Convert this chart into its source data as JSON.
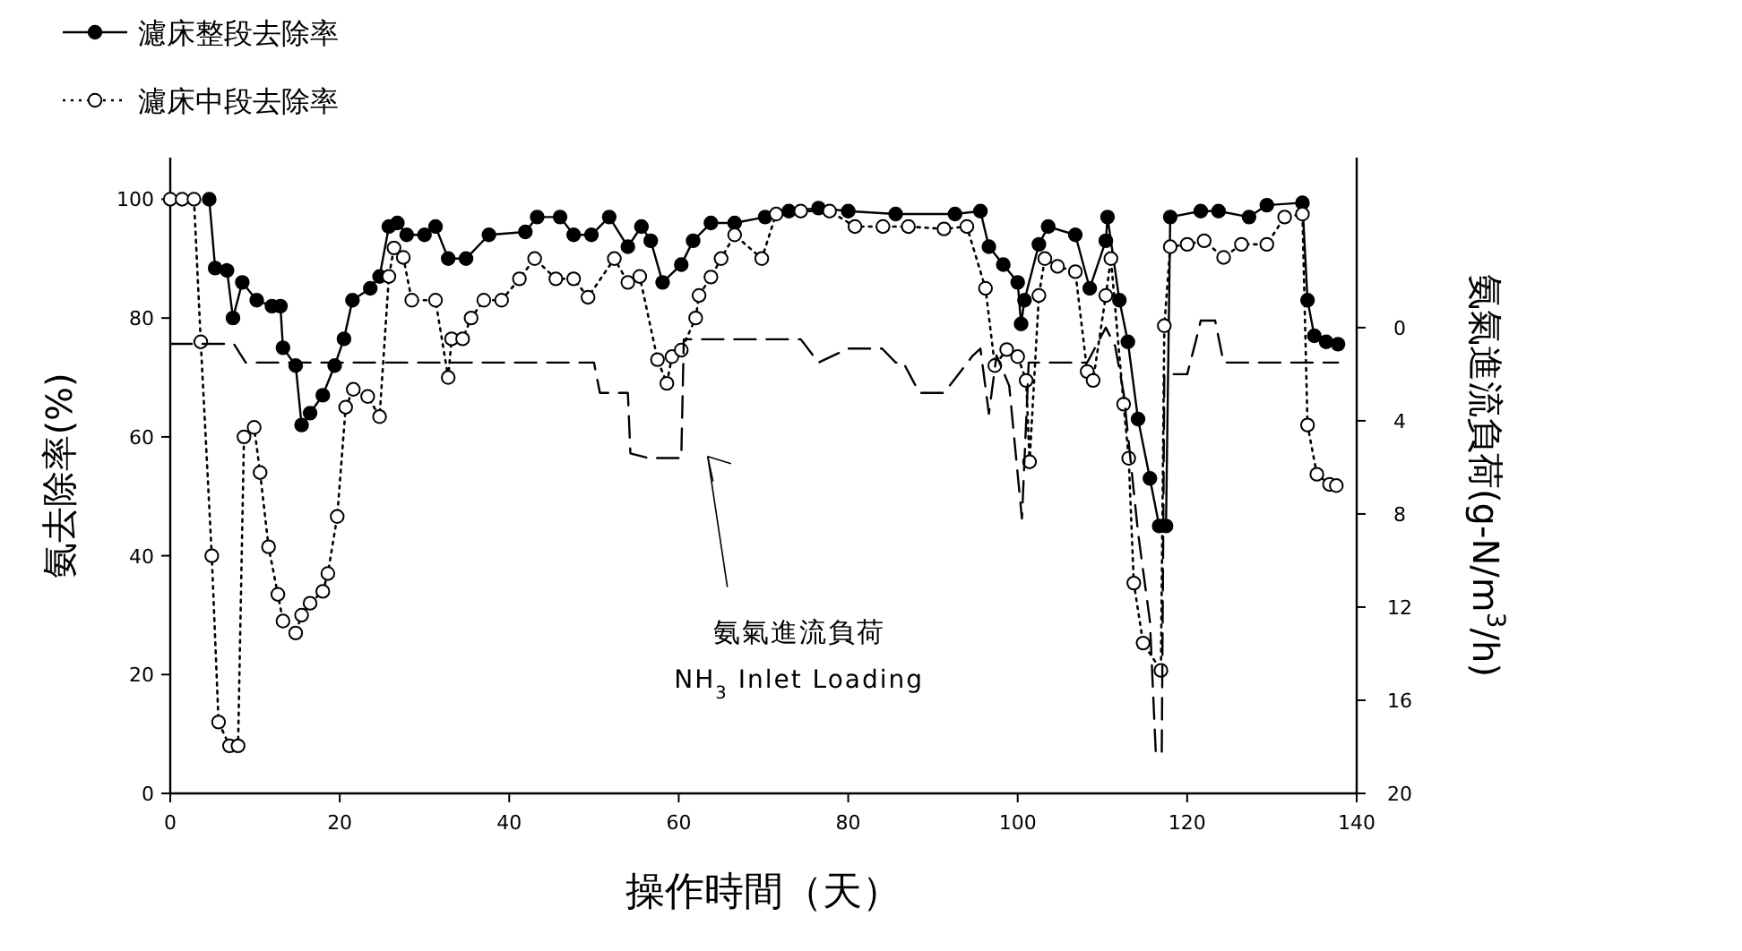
{
  "chart_data": {
    "type": "line",
    "xlabel": "操作時間（天）",
    "ylabel": "氨去除率(%)",
    "y2label": "氨氣進流負荷(g-N/m$^{3}$/h)",
    "xlim": [
      0,
      140
    ],
    "xticks": [
      0,
      20,
      40,
      60,
      80,
      100,
      120,
      140
    ],
    "ylim": [
      0,
      107
    ],
    "yticks": [
      0,
      20,
      40,
      60,
      80,
      100
    ],
    "y2lim": [
      20,
      -7.3
    ],
    "y2ticks": [
      0,
      4,
      8,
      12,
      16,
      20
    ],
    "legend": "top left",
    "marker": "circle",
    "annotations": [
      "氨氣進流負荷",
      "NH$_{3}$ Inlet Loading"
    ],
    "series": [
      {
        "name": "濾床整段去除率",
        "color": "#000000",
        "line_style": "solid",
        "x": [
          4.6,
          5.3,
          6.7,
          7.4,
          8.5,
          10.2,
          12,
          13,
          13.3,
          14.8,
          15.5,
          16.5,
          18,
          19.4,
          20.5,
          21.5,
          23.6,
          24.7,
          25.8,
          26.8,
          27.9,
          30,
          31.3,
          32.8,
          34.9,
          37.6,
          41.9,
          43.3,
          46,
          47.6,
          49.7,
          51.8,
          54,
          55.6,
          56.7,
          58.1,
          60.3,
          61.7,
          63.8,
          66.6,
          70.2,
          73,
          76.5,
          80,
          85.6,
          92.6,
          95.6,
          96.6,
          98.3,
          100,
          100.4,
          100.8,
          102.5,
          103.6,
          106.8,
          108.5,
          110.4,
          110.6,
          112,
          113,
          114.2,
          115.6,
          116.7,
          117.5,
          118,
          121.6,
          123.7,
          127.3,
          129.4,
          133.6,
          134.2,
          135,
          136.4,
          137.8
        ],
        "values": [
          100,
          88.4,
          88,
          80,
          86,
          83,
          82,
          82,
          75,
          72,
          62,
          64,
          67,
          72,
          76.5,
          83,
          85,
          87,
          95.4,
          96,
          94,
          94,
          95.4,
          90,
          90,
          94,
          94.5,
          97,
          97,
          94,
          94,
          97,
          92,
          95.4,
          93,
          86,
          89,
          93,
          96,
          96,
          97,
          98,
          98.5,
          98,
          97.5,
          97.5,
          98,
          92,
          89,
          86,
          79,
          83,
          92.4,
          95.4,
          94,
          85,
          93,
          97,
          83,
          76,
          63,
          53,
          45,
          45,
          97,
          98,
          98,
          97,
          99,
          99.4,
          83,
          77,
          76,
          75.6
        ]
      },
      {
        "name": "濾床中段去除率",
        "color": "#000000",
        "line_style": "dotted",
        "x": [
          0,
          1.4,
          2.8,
          3.6,
          4.9,
          5.7,
          7,
          8,
          8.7,
          9.9,
          10.6,
          11.6,
          12.7,
          13.3,
          14.8,
          15.5,
          16.5,
          18,
          18.6,
          19.7,
          20.7,
          21.6,
          23.3,
          24.7,
          25.8,
          26.4,
          27.5,
          28.5,
          31.3,
          32.8,
          33.2,
          34.5,
          35.5,
          37,
          39.1,
          41.2,
          43,
          45.5,
          47.6,
          49.3,
          52.4,
          54,
          55.4,
          57.5,
          58.6,
          59.2,
          60.3,
          62,
          62.4,
          63.8,
          65,
          66.6,
          69.8,
          71.5,
          74.4,
          77.8,
          80.8,
          84.1,
          87.1,
          91.3,
          94,
          96.2,
          97.3,
          98.7,
          100,
          101,
          101.4,
          102.5,
          103.2,
          104.7,
          106.8,
          108.2,
          108.9,
          110.4,
          111,
          112.5,
          113.1,
          113.7,
          114.8,
          116.9,
          117.3,
          118,
          120,
          122,
          124.3,
          126.4,
          129.4,
          131.5,
          133.6,
          134.2,
          135.3,
          136.8,
          137.6
        ],
        "values": [
          100,
          100,
          100,
          76,
          40,
          12,
          8,
          8,
          60,
          61.6,
          54,
          41.5,
          33.5,
          29,
          27,
          30,
          32,
          34,
          37,
          46.6,
          65,
          68,
          66.8,
          63.4,
          87,
          91.8,
          90.2,
          83,
          83,
          70,
          76.5,
          76.5,
          80,
          83,
          83,
          86.6,
          90,
          86.6,
          86.6,
          83.5,
          90,
          86,
          87,
          73,
          69,
          73.5,
          74.6,
          80,
          83.8,
          86.9,
          90,
          94,
          90,
          97.5,
          98,
          98,
          95.4,
          95.4,
          95.4,
          95,
          95.4,
          85,
          72,
          74.7,
          73.5,
          69.5,
          55.8,
          83.8,
          90,
          88.7,
          87.8,
          71,
          69.5,
          83.8,
          90,
          65.5,
          56.4,
          35.4,
          25.3,
          20.7,
          78.7,
          92,
          92.4,
          93,
          90.2,
          92.4,
          92.4,
          97,
          97.5,
          62,
          53.7,
          52,
          51.8
        ]
      },
      {
        "axis": "y2",
        "color": "#000000",
        "line_style": "dashed",
        "marker": "none",
        "x": [
          0,
          7.5,
          8.9,
          50,
          50.7,
          54,
          54.3,
          56.4,
          60.3,
          60.6,
          74.4,
          76.5,
          80,
          84,
          85.6,
          86.5,
          88.4,
          91.3,
          92.6,
          94.7,
          95.6,
          96.6,
          97.5,
          99,
          100.5,
          101.3,
          108.2,
          110.4,
          111.5,
          112.5,
          114.2,
          115.6,
          116.3,
          117,
          117.3,
          120,
          121,
          121.6,
          123.3,
          124.3,
          137.8
        ],
        "values": [
          0.7,
          0.7,
          1.5,
          1.5,
          2.8,
          2.8,
          5.4,
          5.6,
          5.6,
          0.5,
          0.5,
          1.5,
          0.9,
          0.9,
          1.5,
          1.5,
          2.8,
          2.8,
          2.2,
          1.2,
          0.9,
          3.7,
          1.2,
          2.5,
          8.2,
          1.5,
          1.5,
          0,
          0.8,
          2.8,
          8.8,
          12.6,
          18.3,
          18.3,
          2,
          2,
          0.6,
          -0.3,
          -0.3,
          1.5,
          1.5
        ]
      }
    ]
  }
}
